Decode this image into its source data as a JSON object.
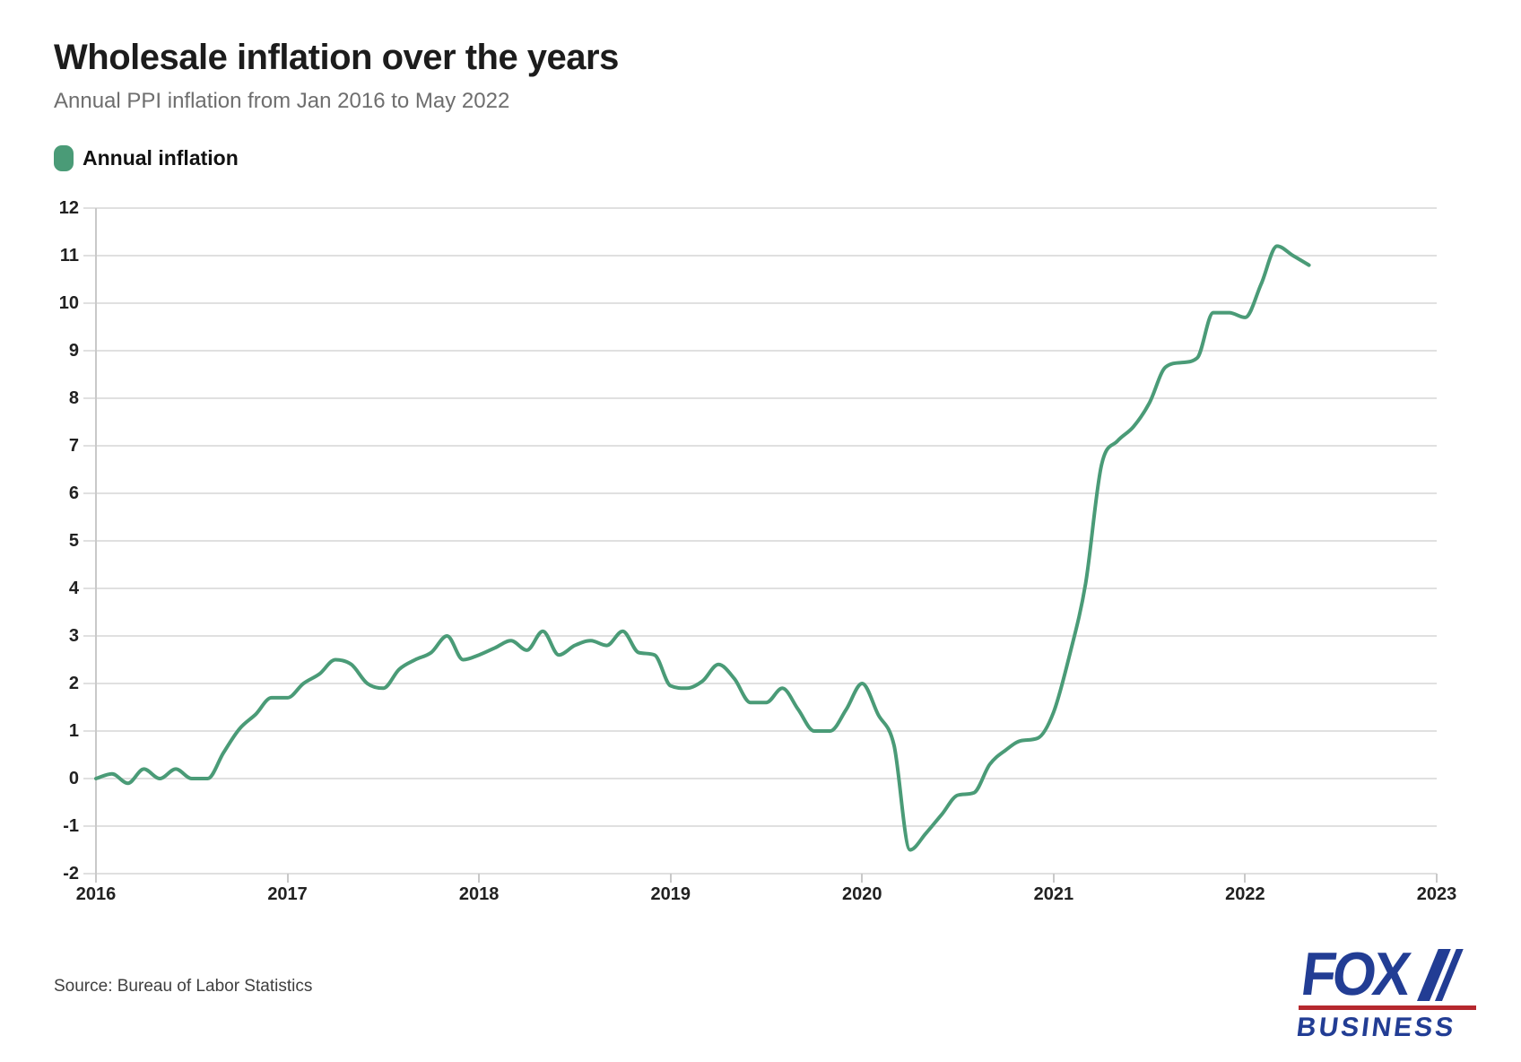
{
  "header": {
    "title": "Wholesale inflation over the years",
    "subtitle": "Annual PPI inflation from Jan 2016 to May 2022"
  },
  "legend": {
    "label": "Annual inflation",
    "swatch_color": "#4a9b77"
  },
  "chart_data": {
    "type": "line",
    "title": "Wholesale inflation over the years",
    "subtitle": "Annual PPI inflation from Jan 2016 to May 2022",
    "frequency": "monthly",
    "x_start": "Jan 2016",
    "x_end": "May 2022",
    "series": [
      {
        "name": "Annual inflation",
        "values": [
          0.0,
          0.1,
          -0.1,
          0.2,
          0.0,
          0.2,
          0.0,
          0.0,
          0.55,
          1.05,
          1.35,
          1.7,
          1.7,
          2.0,
          2.2,
          2.5,
          2.4,
          2.0,
          1.9,
          2.3,
          2.5,
          2.65,
          3.0,
          2.5,
          2.6,
          2.75,
          2.9,
          2.7,
          3.1,
          2.6,
          2.8,
          2.9,
          2.8,
          3.1,
          2.65,
          2.6,
          1.95,
          1.9,
          2.05,
          2.4,
          2.1,
          1.6,
          1.6,
          1.9,
          1.45,
          1.0,
          1.0,
          1.45,
          2.0,
          1.35,
          0.7,
          -1.5,
          -1.15,
          -0.75,
          -0.35,
          -0.3,
          0.3,
          0.6,
          0.8,
          0.85,
          1.4,
          2.6,
          4.1,
          6.6,
          7.1,
          7.4,
          7.9,
          8.65,
          8.75,
          8.85,
          9.8,
          9.8,
          9.7,
          10.4,
          11.2,
          11.0,
          10.8
        ]
      }
    ],
    "x_ticks": [
      "2016",
      "2017",
      "2018",
      "2019",
      "2020",
      "2021",
      "2022",
      "2023"
    ],
    "y_ticks": [
      "-2",
      "-1",
      "0",
      "1",
      "2",
      "3",
      "4",
      "5",
      "6",
      "7",
      "8",
      "9",
      "10",
      "11",
      "12"
    ],
    "ylim": [
      -2,
      12
    ],
    "grid": true,
    "legend_position": "top-left",
    "line_color": "#4a9b77",
    "grid_color": "#e0e0e0",
    "axis_color": "#c9c9c9",
    "label_color": "#212121"
  },
  "footer": {
    "source": "Source: Bureau of Labor Statistics"
  },
  "logo": {
    "line1": "FOX",
    "line2": "BUSINESS",
    "navy": "#223d94",
    "red": "#b5282e"
  }
}
